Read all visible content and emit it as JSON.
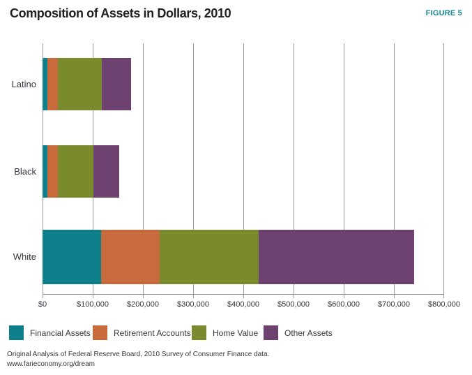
{
  "header": {
    "title": "Composition of Assets in Dollars, 2010",
    "figure_label": "FIGURE 5"
  },
  "chart_data": {
    "type": "bar",
    "orientation": "horizontal",
    "stacked": true,
    "title": "Composition of Assets in Dollars, 2010",
    "categories": [
      "Latino",
      "Black",
      "White"
    ],
    "series": [
      {
        "name": "Financial Assets",
        "color": "#0f7f8c",
        "values": [
          10000,
          10000,
          117000
        ]
      },
      {
        "name": "Retirement Accounts",
        "color": "#c76b3c",
        "values": [
          21000,
          21000,
          117000
        ]
      },
      {
        "name": "Home Value",
        "color": "#798b2d",
        "values": [
          87000,
          70000,
          197000
        ]
      },
      {
        "name": "Other Assets",
        "color": "#6e4270",
        "values": [
          59000,
          52000,
          309000
        ]
      }
    ],
    "totals": [
      177000,
      153000,
      740000
    ],
    "xlim": [
      0,
      800000
    ],
    "x_ticks": [
      "$0",
      "$100,000",
      "$200,000",
      "$300,000",
      "$400,000",
      "$500,000",
      "$600,000",
      "$700,000",
      "$800,000"
    ],
    "xlabel": "",
    "ylabel": "",
    "grid": "vertical",
    "gridline_color": "#9b9b9b",
    "legend_position": "bottom"
  },
  "footer": {
    "source_line": "Original Analysis of Federal Reserve Board, 2010 Survey of Consumer Finance data.",
    "url_line": "www.farieconomy.org/dream"
  }
}
